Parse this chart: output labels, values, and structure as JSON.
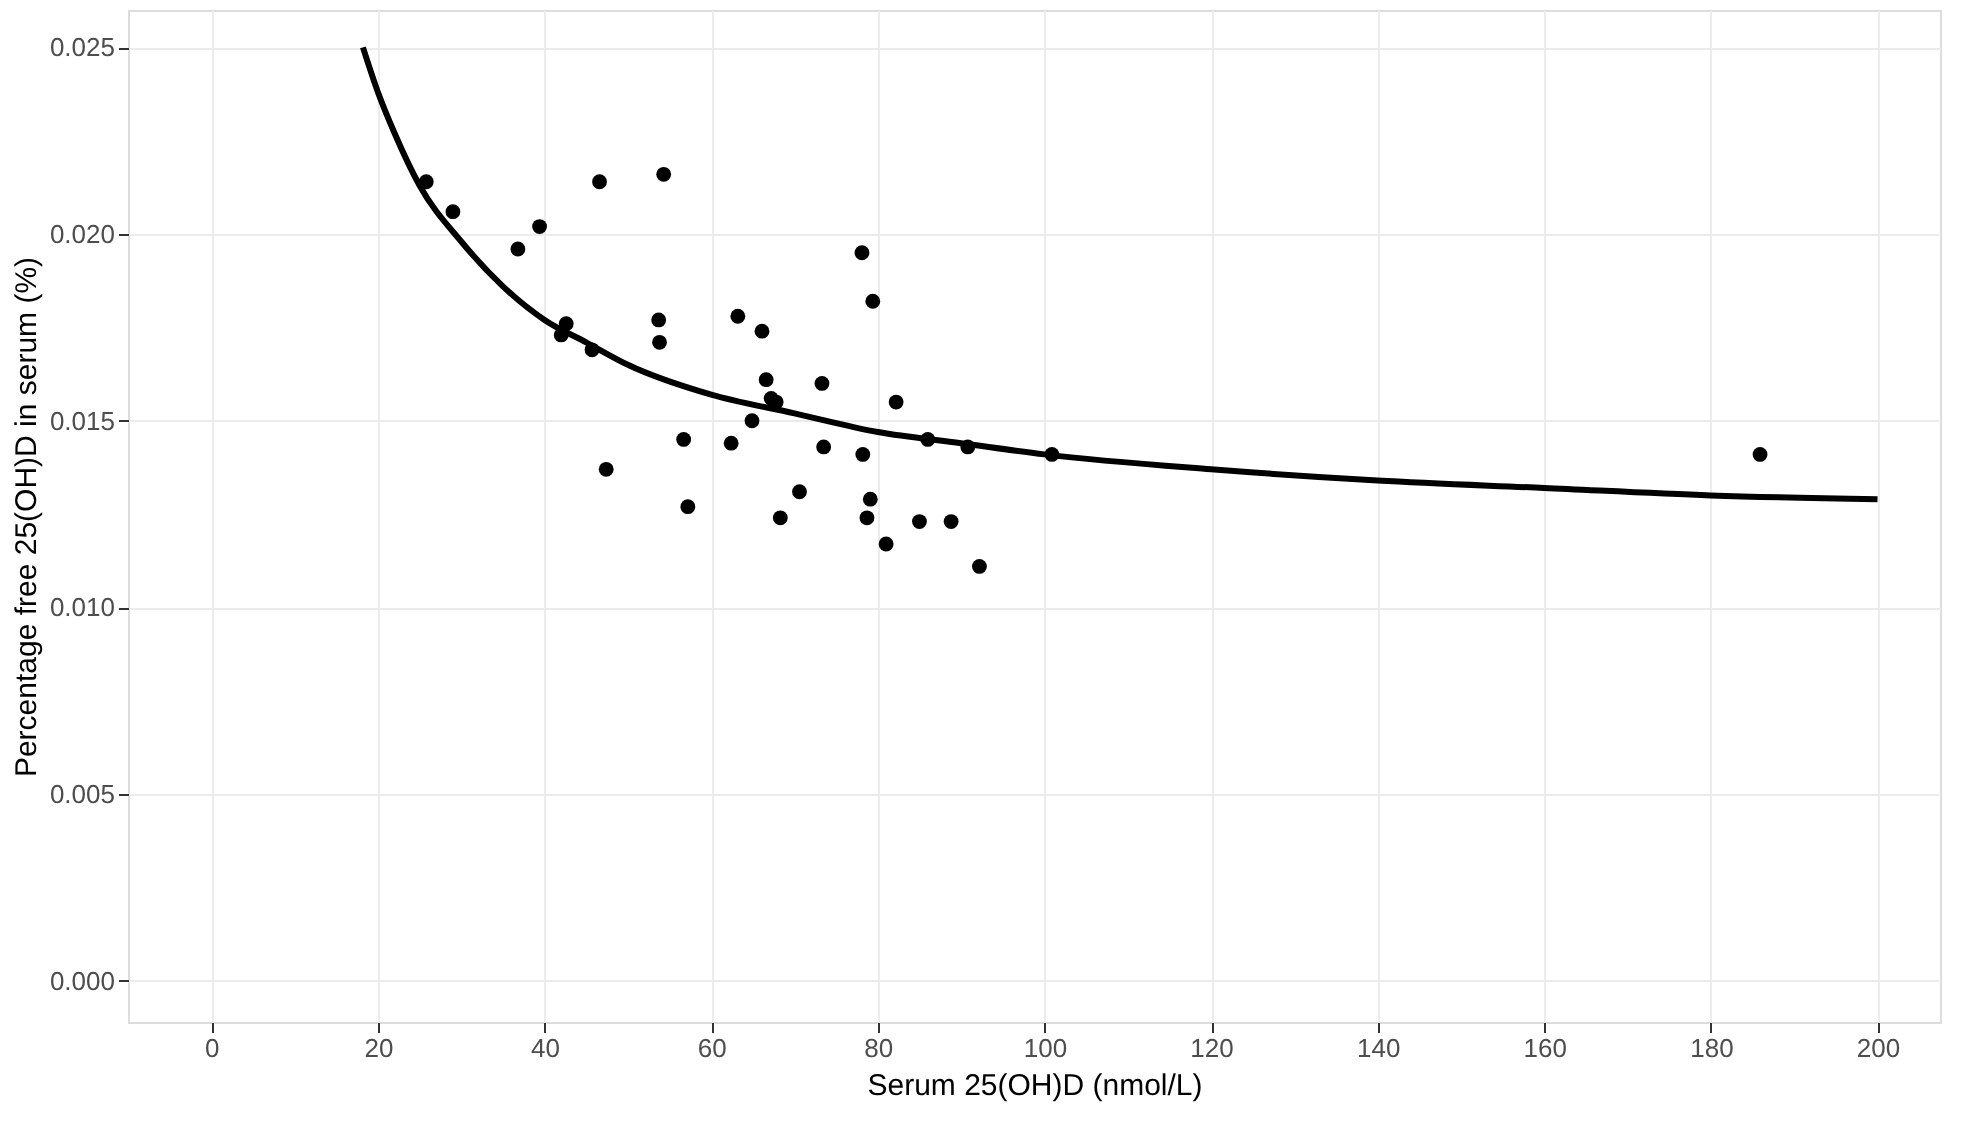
{
  "chart_data": {
    "type": "scatter",
    "xlabel": "Serum 25(OH)D (nmol/L)",
    "ylabel": "Percentage free 25(OH)D in serum (%)",
    "xlim": [
      -10,
      207.5
    ],
    "ylim": [
      -0.0011,
      0.026
    ],
    "xticks": [
      0,
      20,
      40,
      60,
      80,
      100,
      120,
      140,
      160,
      180,
      200
    ],
    "yticks": [
      {
        "value": 0,
        "label": "0.000"
      },
      {
        "value": 0.005,
        "label": "0.005"
      },
      {
        "value": 0.01,
        "label": "0.010"
      },
      {
        "value": 0.015,
        "label": "0.015"
      },
      {
        "value": 0.02,
        "label": "0.020"
      },
      {
        "value": 0.025,
        "label": "0.025"
      }
    ],
    "grid": true,
    "series": [
      {
        "marker": "circle",
        "color": "#000000",
        "x": [
          25.8,
          29.0,
          36.8,
          39.4,
          46.6,
          54.3,
          42.0,
          42.6,
          45.7,
          47.4,
          53.7,
          53.8,
          56.7,
          57.2,
          62.4,
          63.2,
          64.9,
          66.1,
          66.6,
          67.2,
          67.8,
          68.3,
          70.6,
          73.3,
          73.5,
          78.1,
          78.2,
          78.7,
          79.1,
          79.4,
          81.0,
          82.2,
          85.0,
          86.0,
          88.8,
          90.8,
          92.2,
          100.9,
          185.9
        ],
        "values": [
          0.0214,
          0.0206,
          0.0196,
          0.0202,
          0.0214,
          0.0216,
          0.0173,
          0.0176,
          0.0169,
          0.0137,
          0.0177,
          0.0171,
          0.0145,
          0.0127,
          0.0144,
          0.0178,
          0.015,
          0.0174,
          0.0161,
          0.0156,
          0.0155,
          0.0124,
          0.0131,
          0.016,
          0.0143,
          0.0195,
          0.0141,
          0.0124,
          0.0129,
          0.0182,
          0.0117,
          0.0155,
          0.0123,
          0.0145,
          0.0123,
          0.0143,
          0.0111,
          0.0141,
          0.0141
        ]
      },
      {
        "type": "line",
        "marker": "none",
        "color": "#000000",
        "line_style": "solid",
        "x": [
          18.2,
          20,
          22,
          25,
          30,
          35,
          40,
          45,
          50,
          60,
          70,
          80,
          90,
          100,
          120,
          140,
          160,
          180,
          200
        ],
        "values": [
          0.025,
          0.0238,
          0.0227,
          0.0213,
          0.0198,
          0.0186,
          0.0177,
          0.0171,
          0.0165,
          0.0157,
          0.0152,
          0.0147,
          0.0144,
          0.0141,
          0.0137,
          0.0134,
          0.0132,
          0.013,
          0.0129
        ]
      }
    ]
  }
}
